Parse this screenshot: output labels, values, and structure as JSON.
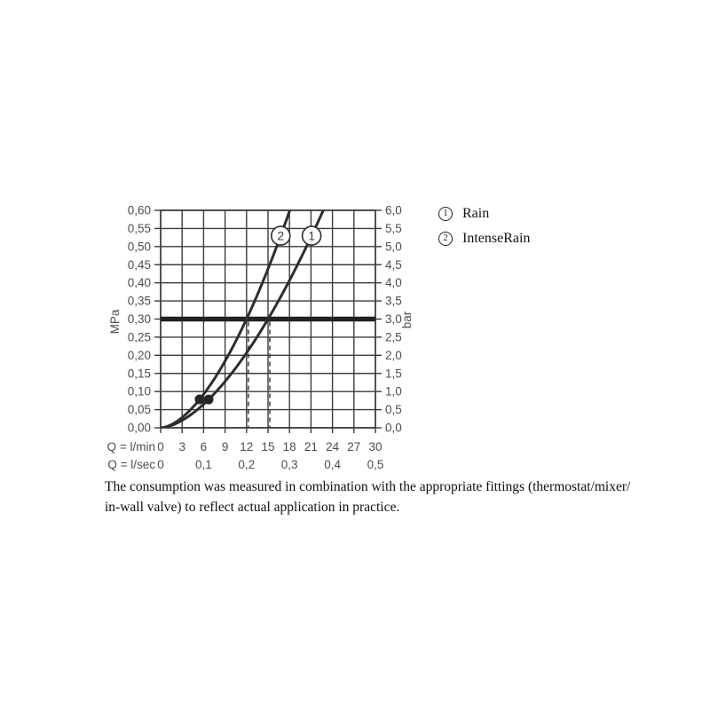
{
  "colors": {
    "background": "#ffffff",
    "grid": "#3b3b3b",
    "curve": "#2d2d2d",
    "reference_line": "#222222",
    "axis_text": "#4d4d4d",
    "body_text": "#111111",
    "marker_fill": "#ffffff",
    "dot_fill": "#262626"
  },
  "legend": {
    "items": [
      {
        "number": "1",
        "label": "Rain"
      },
      {
        "number": "2",
        "label": "IntenseRain"
      }
    ]
  },
  "caption": {
    "line1": "The consumption was measured in combination with the appropriate fittings (thermostat/mixer/",
    "line2": "in-wall valve) to reflect actual application in practice."
  },
  "chart_data": {
    "type": "line",
    "title": "",
    "x_axis": {
      "row1_label": "Q = l/min",
      "row1_ticks": [
        "0",
        "3",
        "6",
        "9",
        "12",
        "15",
        "18",
        "21",
        "24",
        "27",
        "30"
      ],
      "row1_range_lmin": [
        0,
        30
      ],
      "row2_label": "Q = l/sec",
      "row2_ticks": [
        {
          "q": 0,
          "t": "0"
        },
        {
          "q": 6,
          "t": "0,1"
        },
        {
          "q": 12,
          "t": "0,2"
        },
        {
          "q": 18,
          "t": "0,3"
        },
        {
          "q": 24,
          "t": "0,4"
        },
        {
          "q": 30,
          "t": "0,5"
        }
      ]
    },
    "y_axis_left": {
      "label": "MPa",
      "ticks": [
        "0,00",
        "0,05",
        "0,10",
        "0,15",
        "0,20",
        "0,25",
        "0,30",
        "0,35",
        "0,40",
        "0,45",
        "0,50",
        "0,55",
        "0,60"
      ],
      "range_mpa": [
        0,
        0.6
      ]
    },
    "y_axis_right": {
      "label": "bar",
      "ticks": [
        "0,0",
        "0,5",
        "1,0",
        "1,5",
        "2,0",
        "2,5",
        "3,0",
        "3,5",
        "4,0",
        "4,5",
        "5,0",
        "5,5",
        "6,0"
      ],
      "range_bar": [
        0,
        6
      ]
    },
    "grid": {
      "x_step_lmin": 3,
      "y_step_mpa": 0.05,
      "visible": true
    },
    "reference_line": {
      "value_mpa": 0.3,
      "value_bar": 3.0
    },
    "dashed_drop_lines_lmin": [
      12,
      15
    ],
    "marker_level_mpa": 0.53,
    "series": [
      {
        "marker": "1",
        "name": "Rain",
        "crosses_3bar_at_lmin": 15,
        "fit": {
          "Qref": 15,
          "n": 1.67,
          "formula": "P_MPa = 0.3*(Q/Qref)^n"
        },
        "dot_lmin": 6.7,
        "points_lmin_mpa": [
          [
            0,
            0
          ],
          [
            3,
            0.02
          ],
          [
            6,
            0.065
          ],
          [
            6.7,
            0.078
          ],
          [
            9,
            0.128
          ],
          [
            12,
            0.207
          ],
          [
            15,
            0.3
          ],
          [
            18,
            0.407
          ],
          [
            21,
            0.526
          ],
          [
            22.8,
            0.6
          ]
        ]
      },
      {
        "marker": "2",
        "name": "IntenseRain",
        "crosses_3bar_at_lmin": 12,
        "fit": {
          "Qref": 12,
          "n": 1.7,
          "formula": "P_MPa = 0.3*(Q/Qref)^n"
        },
        "dot_lmin": 5.45,
        "points_lmin_mpa": [
          [
            0,
            0
          ],
          [
            3,
            0.028
          ],
          [
            5.45,
            0.079
          ],
          [
            6,
            0.092
          ],
          [
            9,
            0.184
          ],
          [
            12,
            0.3
          ],
          [
            15,
            0.438
          ],
          [
            18.1,
            0.6
          ]
        ]
      }
    ]
  }
}
